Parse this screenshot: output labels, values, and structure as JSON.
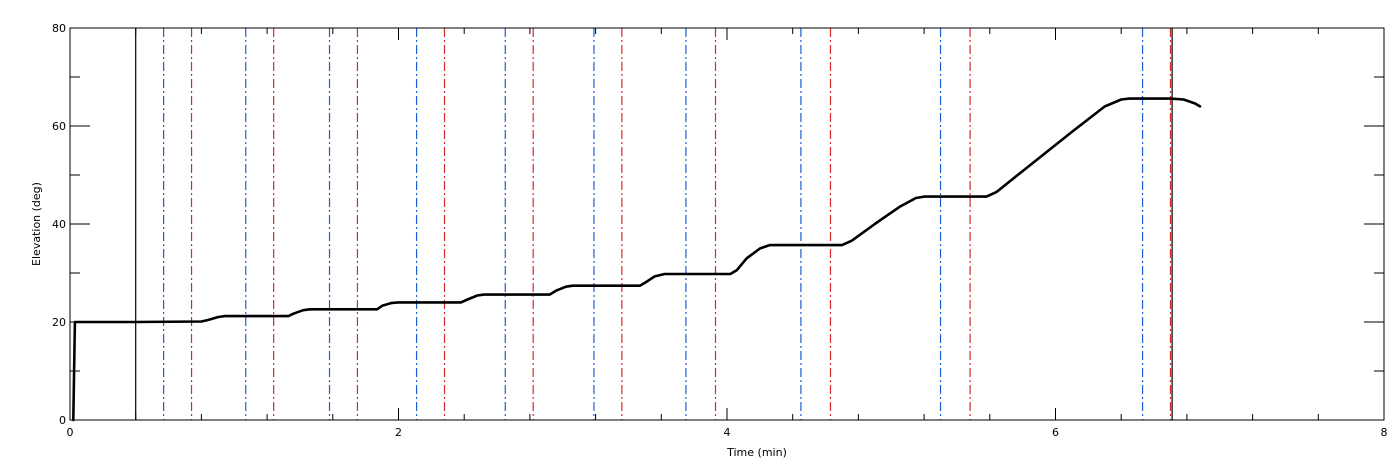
{
  "chart_data": {
    "type": "line",
    "title": "",
    "xlabel": "Time (min)",
    "ylabel": "Elevation (deg)",
    "xlim": [
      0,
      8
    ],
    "ylim": [
      0,
      80
    ],
    "x_ticks": [
      0,
      2,
      4,
      6,
      8
    ],
    "y_ticks": [
      0,
      20,
      40,
      60,
      80
    ],
    "x_minor_step": 0.4,
    "y_minor_step": 10,
    "grid": false,
    "series": [
      {
        "color": "#000000",
        "style": "solid",
        "points": [
          [
            0.02,
            0
          ],
          [
            0.03,
            20
          ],
          [
            0.4,
            20
          ],
          [
            0.8,
            20.1
          ],
          [
            0.84,
            20.4
          ],
          [
            0.9,
            21.0
          ],
          [
            0.94,
            21.2
          ],
          [
            1.33,
            21.2
          ],
          [
            1.36,
            21.7
          ],
          [
            1.42,
            22.4
          ],
          [
            1.46,
            22.6
          ],
          [
            1.87,
            22.6
          ],
          [
            1.9,
            23.3
          ],
          [
            1.96,
            23.9
          ],
          [
            2.0,
            24.0
          ],
          [
            2.38,
            24.0
          ],
          [
            2.42,
            24.6
          ],
          [
            2.48,
            25.4
          ],
          [
            2.52,
            25.6
          ],
          [
            2.92,
            25.6
          ],
          [
            2.96,
            26.4
          ],
          [
            3.02,
            27.2
          ],
          [
            3.06,
            27.4
          ],
          [
            3.47,
            27.4
          ],
          [
            3.5,
            28.0
          ],
          [
            3.56,
            29.3
          ],
          [
            3.62,
            29.8
          ],
          [
            4.02,
            29.8
          ],
          [
            4.06,
            30.6
          ],
          [
            4.12,
            33.0
          ],
          [
            4.2,
            35.0
          ],
          [
            4.26,
            35.7
          ],
          [
            4.7,
            35.7
          ],
          [
            4.76,
            36.6
          ],
          [
            4.9,
            40.0
          ],
          [
            5.05,
            43.5
          ],
          [
            5.15,
            45.3
          ],
          [
            5.2,
            45.6
          ],
          [
            5.58,
            45.6
          ],
          [
            5.64,
            46.5
          ],
          [
            5.8,
            50.8
          ],
          [
            6.1,
            58.8
          ],
          [
            6.3,
            64.0
          ],
          [
            6.4,
            65.4
          ],
          [
            6.45,
            65.6
          ],
          [
            6.7,
            65.6
          ],
          [
            6.78,
            65.4
          ],
          [
            6.85,
            64.6
          ],
          [
            6.88,
            64.0
          ]
        ]
      }
    ],
    "vertical_lines": [
      {
        "x": 0.4,
        "color": "#000000",
        "style": "solid"
      },
      {
        "x": 0.57,
        "color": "#1a5fd6",
        "style": "dashdot"
      },
      {
        "x": 0.74,
        "color": "#d62a2a",
        "style": "dashdot"
      },
      {
        "x": 1.07,
        "color": "#1a5fd6",
        "style": "dashdot"
      },
      {
        "x": 1.24,
        "color": "#d62a2a",
        "style": "dashdot"
      },
      {
        "x": 1.58,
        "color": "#1a5fd6",
        "style": "dashdot"
      },
      {
        "x": 1.75,
        "color": "#d62a2a",
        "style": "dashdot"
      },
      {
        "x": 2.11,
        "color": "#1a5fd6",
        "style": "dashdot"
      },
      {
        "x": 2.28,
        "color": "#d62a2a",
        "style": "dashdot"
      },
      {
        "x": 2.65,
        "color": "#1a5fd6",
        "style": "dashdot"
      },
      {
        "x": 2.82,
        "color": "#d62a2a",
        "style": "dashdot"
      },
      {
        "x": 3.19,
        "color": "#1a5fd6",
        "style": "dashdot"
      },
      {
        "x": 3.36,
        "color": "#d62a2a",
        "style": "dashdot"
      },
      {
        "x": 3.75,
        "color": "#1a5fd6",
        "style": "dashdot"
      },
      {
        "x": 3.93,
        "color": "#d62a2a",
        "style": "dashdot"
      },
      {
        "x": 4.45,
        "color": "#1a5fd6",
        "style": "dashdot"
      },
      {
        "x": 4.63,
        "color": "#d62a2a",
        "style": "dashdot"
      },
      {
        "x": 5.3,
        "color": "#1a5fd6",
        "style": "dashdot"
      },
      {
        "x": 5.48,
        "color": "#d62a2a",
        "style": "dashdot"
      },
      {
        "x": 6.53,
        "color": "#1a5fd6",
        "style": "dashdot"
      },
      {
        "x": 6.7,
        "color": "#d62a2a",
        "style": "dashdot"
      },
      {
        "x": 6.71,
        "color": "#000000",
        "style": "solid"
      }
    ]
  }
}
